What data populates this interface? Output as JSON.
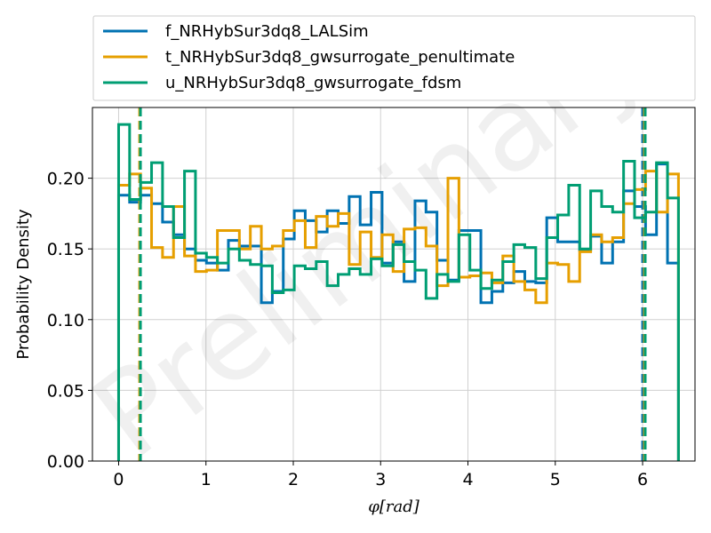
{
  "chart_data": {
    "type": "histogram",
    "xlabel": "φ[rad]",
    "ylabel": "Probability Density",
    "xlim": [
      -0.3,
      6.6
    ],
    "ylim": [
      0,
      0.25
    ],
    "xticks": [
      "0",
      "1",
      "2",
      "3",
      "4",
      "5",
      "6"
    ],
    "yticks": [
      "0.00",
      "0.05",
      "0.10",
      "0.15",
      "0.20"
    ],
    "grid": true,
    "legend_position": "top (above plot)",
    "watermark": "Preliminary",
    "bin_width": 0.1257,
    "series": [
      {
        "name": "f_NRHybSur3dq8_LALSim",
        "color": "#0072b2",
        "values": [
          0.188,
          0.183,
          0.188,
          0.182,
          0.169,
          0.16,
          0.15,
          0.142,
          0.14,
          0.135,
          0.156,
          0.152,
          0.152,
          0.112,
          0.12,
          0.157,
          0.177,
          0.17,
          0.162,
          0.177,
          0.168,
          0.187,
          0.167,
          0.19,
          0.14,
          0.155,
          0.127,
          0.184,
          0.176,
          0.142,
          0.128,
          0.163,
          0.163,
          0.112,
          0.12,
          0.126,
          0.134,
          0.127,
          0.126,
          0.172,
          0.155,
          0.155,
          0.149,
          0.159,
          0.14,
          0.155,
          0.191,
          0.18,
          0.16,
          0.21,
          0.14
        ],
        "quantile_lines": [
          0.245,
          6.0
        ]
      },
      {
        "name": "t_NRHybSur3dq8_gwsurrogate_penultimate",
        "color": "#e69f00",
        "values": [
          0.195,
          0.203,
          0.193,
          0.151,
          0.144,
          0.18,
          0.145,
          0.134,
          0.135,
          0.163,
          0.163,
          0.15,
          0.166,
          0.15,
          0.152,
          0.163,
          0.17,
          0.151,
          0.173,
          0.166,
          0.175,
          0.139,
          0.162,
          0.144,
          0.16,
          0.134,
          0.164,
          0.165,
          0.152,
          0.124,
          0.2,
          0.13,
          0.131,
          0.133,
          0.126,
          0.145,
          0.127,
          0.121,
          0.112,
          0.14,
          0.139,
          0.127,
          0.148,
          0.16,
          0.155,
          0.158,
          0.182,
          0.192,
          0.205,
          0.176,
          0.203
        ],
        "quantile_lines": [
          0.24,
          6.02
        ]
      },
      {
        "name": "u_NRHybSur3dq8_gwsurrogate_fdsm",
        "color": "#009e73",
        "values": [
          0.238,
          0.185,
          0.197,
          0.211,
          0.18,
          0.158,
          0.205,
          0.147,
          0.144,
          0.14,
          0.15,
          0.142,
          0.139,
          0.138,
          0.119,
          0.121,
          0.138,
          0.136,
          0.141,
          0.124,
          0.132,
          0.136,
          0.132,
          0.143,
          0.138,
          0.153,
          0.141,
          0.135,
          0.115,
          0.132,
          0.127,
          0.16,
          0.135,
          0.122,
          0.128,
          0.141,
          0.153,
          0.151,
          0.129,
          0.158,
          0.174,
          0.195,
          0.15,
          0.191,
          0.18,
          0.176,
          0.212,
          0.172,
          0.176,
          0.211,
          0.186
        ],
        "quantile_lines": [
          0.25,
          6.03
        ]
      }
    ]
  }
}
